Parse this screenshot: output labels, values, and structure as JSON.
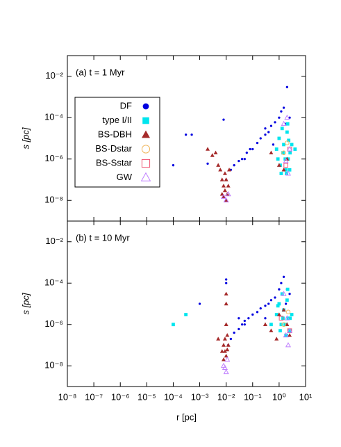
{
  "chart_data": [
    {
      "type": "scatter",
      "annotation": "(a) t = 1 Myr",
      "ylabel": "s [pc]",
      "log_scale": true,
      "legend": true,
      "legend_position": "upper left",
      "xlim": [
        1e-08,
        10
      ],
      "ylim": [
        1e-09,
        0.1
      ],
      "xticks": [
        1e-08,
        1e-07,
        1e-06,
        1e-05,
        0.0001,
        0.001,
        0.01,
        0.1,
        1,
        10
      ],
      "yticks": [
        {
          "value": 0.01,
          "label": "10⁻²"
        },
        {
          "value": 0.0001,
          "label": "10⁻⁴"
        },
        {
          "value": 1e-06,
          "label": "10⁻⁶"
        },
        {
          "value": 1e-08,
          "label": "10⁻⁸"
        }
      ],
      "series": [
        {
          "name": "DF",
          "color": "#0000e0",
          "marker": "dot",
          "x": [
            0.0001,
            0.0003,
            0.0005,
            0.002,
            0.008,
            0.01,
            0.015,
            0.02,
            0.03,
            0.04,
            0.06,
            0.08,
            0.1,
            0.15,
            0.2,
            0.3,
            0.4,
            0.5,
            0.7,
            1,
            1.2,
            1.5,
            2,
            2.5,
            1.8,
            0.6,
            0.3,
            0.05
          ],
          "values": [
            5e-07,
            1.5e-05,
            1.5e-05,
            6e-07,
            8e-05,
            1e-07,
            3e-07,
            5e-07,
            8e-07,
            1e-06,
            2e-06,
            3e-06,
            3e-06,
            6e-06,
            1e-05,
            1.5e-05,
            2e-05,
            4e-05,
            6e-05,
            0.0001,
            0.0002,
            0.0003,
            0.003,
            0.0001,
            5e-05,
            5e-06,
            3e-05,
            1e-06
          ]
        },
        {
          "name": "type I/II",
          "color": "#00e5ee",
          "marker": "square",
          "x": [
            0.8,
            1,
            1.2,
            1.5,
            1.8,
            2,
            2.2,
            2.5,
            3,
            1.1,
            1.4,
            1.7,
            2.1,
            2.6,
            0.9,
            1.3,
            1.9,
            2.3,
            4
          ],
          "values": [
            3e-06,
            1e-05,
            2e-07,
            5e-06,
            3e-07,
            2e-05,
            1e-06,
            3e-07,
            5e-06,
            5e-07,
            2e-06,
            1e-06,
            5e-05,
            2e-06,
            1e-06,
            3e-05,
            2e-07,
            8e-06,
            3e-06
          ]
        },
        {
          "name": "BS-DBH",
          "color": "#a52a2a",
          "marker": "triangle",
          "x": [
            0.002,
            0.003,
            0.004,
            0.005,
            0.006,
            0.007,
            0.008,
            0.009,
            0.01,
            0.011,
            0.012,
            0.008,
            0.009,
            0.01,
            0.013,
            0.007,
            0.5,
            1,
            2,
            1.5
          ],
          "values": [
            3e-06,
            1.5e-06,
            2e-06,
            5e-07,
            3e-07,
            1e-07,
            5e-08,
            3e-08,
            1e-08,
            2e-08,
            5e-08,
            1.5e-08,
            2e-07,
            1e-07,
            3e-07,
            2e-08,
            2e-06,
            5e-07,
            1e-06,
            3e-07
          ]
        },
        {
          "name": "BS-Dstar",
          "color": "#f0b860",
          "marker": "open-circle",
          "x": [
            1.5,
            2
          ],
          "values": [
            2e-06,
            6e-06
          ]
        },
        {
          "name": "BS-Sstar",
          "color": "#f05070",
          "marker": "open-square",
          "x": [
            1.8,
            2.5
          ],
          "values": [
            5e-07,
            3e-06
          ]
        },
        {
          "name": "GW",
          "color": "#c080ff",
          "marker": "open-triangle",
          "x": [
            0.008,
            0.01,
            0.012,
            1.5,
            2,
            2.5,
            1.8,
            2.2
          ],
          "values": [
            1.5e-08,
            1e-08,
            2e-08,
            5e-05,
            0.0001,
            3e-06,
            8e-07,
            2e-07
          ]
        }
      ]
    },
    {
      "type": "scatter",
      "annotation": "(b) t = 10 Myr",
      "ylabel": "s [pc]",
      "xlabel": "r [pc]",
      "log_scale": true,
      "legend": false,
      "xlim": [
        1e-08,
        10
      ],
      "ylim": [
        1e-09,
        0.1
      ],
      "xticks": [
        {
          "value": 1e-08,
          "label": "10⁻⁸"
        },
        {
          "value": 1e-07,
          "label": "10⁻⁷"
        },
        {
          "value": 1e-06,
          "label": "10⁻⁶"
        },
        {
          "value": 1e-05,
          "label": "10⁻⁵"
        },
        {
          "value": 0.0001,
          "label": "10⁻⁴"
        },
        {
          "value": 0.001,
          "label": "10⁻³"
        },
        {
          "value": 0.01,
          "label": "10⁻²"
        },
        {
          "value": 0.1,
          "label": "10⁻¹"
        },
        {
          "value": 1,
          "label": "10⁰"
        },
        {
          "value": 10,
          "label": "10¹"
        }
      ],
      "yticks": [
        {
          "value": 0.01,
          "label": "10⁻²"
        },
        {
          "value": 0.0001,
          "label": "10⁻⁴"
        },
        {
          "value": 1e-06,
          "label": "10⁻⁶"
        },
        {
          "value": 1e-08,
          "label": "10⁻⁸"
        }
      ],
      "series": [
        {
          "color": "#0000e0",
          "marker": "dot",
          "x": [
            0.001,
            0.01,
            0.01,
            0.012,
            0.015,
            0.02,
            0.03,
            0.04,
            0.05,
            0.07,
            0.1,
            0.15,
            0.2,
            0.3,
            0.4,
            0.5,
            0.7,
            1,
            1.2,
            1.5,
            2,
            2.5,
            1.8,
            0.8,
            0.3,
            0.05,
            0.03
          ],
          "values": [
            1e-05,
            0.00015,
            0.0001,
            1e-07,
            2e-07,
            4e-07,
            6e-07,
            1e-06,
            1.5e-06,
            2e-06,
            3e-06,
            4e-06,
            6e-06,
            8e-06,
            1e-05,
            1.5e-05,
            2e-05,
            5e-05,
            0.0001,
            0.0002,
            5e-05,
            3e-05,
            1e-05,
            3e-06,
            2e-06,
            1e-06,
            2e-06
          ]
        },
        {
          "color": "#00e5ee",
          "marker": "square",
          "x": [
            0.0001,
            0.0003,
            0.5,
            0.8,
            1,
            1.2,
            1.5,
            1.8,
            2,
            2.2,
            2.5,
            3,
            1.1,
            1.4,
            1.7,
            2.1,
            2.6,
            0.9,
            1.3,
            1.9
          ],
          "values": [
            1e-06,
            3e-06,
            1e-06,
            3e-06,
            1e-05,
            1e-06,
            5e-06,
            3e-07,
            1.5e-05,
            2e-06,
            5e-07,
            3e-06,
            5e-07,
            2e-06,
            1e-06,
            5e-05,
            2e-06,
            8e-06,
            3e-05,
            3e-07
          ]
        },
        {
          "color": "#a52a2a",
          "marker": "triangle",
          "x": [
            0.005,
            0.008,
            0.009,
            0.01,
            0.011,
            0.012,
            0.008,
            0.009,
            0.01,
            0.01,
            0.01,
            0.011,
            0.007,
            0.3,
            0.5,
            1,
            2,
            0.8,
            1.5,
            2.5
          ],
          "values": [
            2e-07,
            1e-07,
            5e-08,
            3e-08,
            6e-08,
            1e-07,
            2e-08,
            2e-07,
            3e-05,
            1e-05,
            1e-06,
            3e-07,
            5e-08,
            1e-06,
            5e-07,
            3e-06,
            1e-06,
            2e-07,
            5e-06,
            3e-07
          ]
        },
        {
          "color": "#f0b860",
          "marker": "open-circle",
          "x": [
            1.5,
            2.2
          ],
          "values": [
            1e-06,
            4e-06
          ]
        },
        {
          "color": "#f05070",
          "marker": "open-square",
          "x": [
            1.2,
            2.5
          ],
          "values": [
            2e-06,
            5e-07
          ]
        },
        {
          "color": "#c080ff",
          "marker": "open-triangle",
          "x": [
            0.008,
            0.01,
            0.011,
            0.009,
            1.5,
            2,
            2.5,
            1.8,
            2.2
          ],
          "values": [
            1e-08,
            5e-09,
            2e-08,
            8e-09,
            3e-05,
            2e-06,
            5e-07,
            3e-07,
            1e-07
          ]
        }
      ]
    }
  ]
}
